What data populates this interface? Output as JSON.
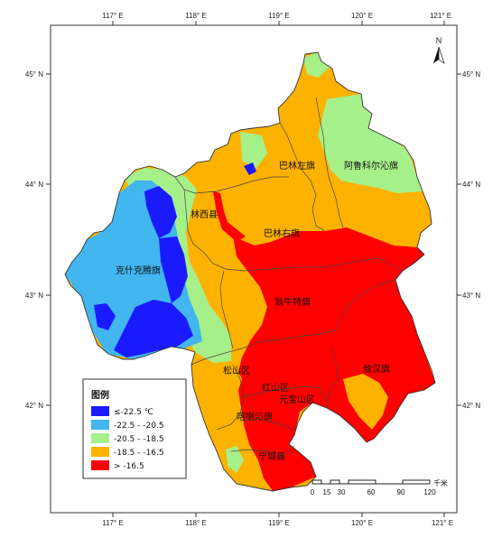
{
  "colors": {
    "class1": "#1a1aff",
    "class2": "#41b6ef",
    "class3": "#a6f08a",
    "class4": "#fdb200",
    "class5": "#ff0000",
    "frame": "#333333"
  },
  "axes": {
    "top_lon": [
      "117° E",
      "118° E",
      "119° E",
      "120° E",
      "121° E"
    ],
    "bottom_lon": [
      "117° E",
      "118° E",
      "119° E",
      "120° E",
      "121° E"
    ],
    "left_lat": [
      "45° N",
      "44° N",
      "43° N",
      "42° N"
    ],
    "right_lat": [
      "45° N",
      "44° N",
      "43° N",
      "42° N"
    ]
  },
  "north_arrow": {
    "label": "N"
  },
  "counties": [
    {
      "id": "balinzuo",
      "label": "巴林左旗"
    },
    {
      "id": "alukeerqin",
      "label": "阿鲁科尔沁旗"
    },
    {
      "id": "linxi",
      "label": "林西县"
    },
    {
      "id": "balinyou",
      "label": "巴林右旗"
    },
    {
      "id": "keshiketeng",
      "label": "克什克腾旗"
    },
    {
      "id": "wengniute",
      "label": "翁牛特旗"
    },
    {
      "id": "aohan",
      "label": "敖汉旗"
    },
    {
      "id": "songshan",
      "label": "松山区"
    },
    {
      "id": "hongshan",
      "label": "红山区"
    },
    {
      "id": "yuanbaoshan",
      "label": "元宝山区"
    },
    {
      "id": "harqin",
      "label": "喀喇沁旗"
    },
    {
      "id": "ningcheng",
      "label": "宁城县"
    }
  ],
  "legend": {
    "title": "图例",
    "items": [
      {
        "label": "≤-22.5 ℃",
        "color_key": "class1"
      },
      {
        "label": "-22.5 - -20.5",
        "color_key": "class2"
      },
      {
        "label": "-20.5 - -18.5",
        "color_key": "class3"
      },
      {
        "label": "-18.5 - -16.5",
        "color_key": "class4"
      },
      {
        "label": "> -16.5",
        "color_key": "class5"
      }
    ]
  },
  "scale_bar": {
    "ticks": [
      "0",
      "15",
      "30",
      "60",
      "90",
      "120"
    ],
    "unit": "千米"
  }
}
